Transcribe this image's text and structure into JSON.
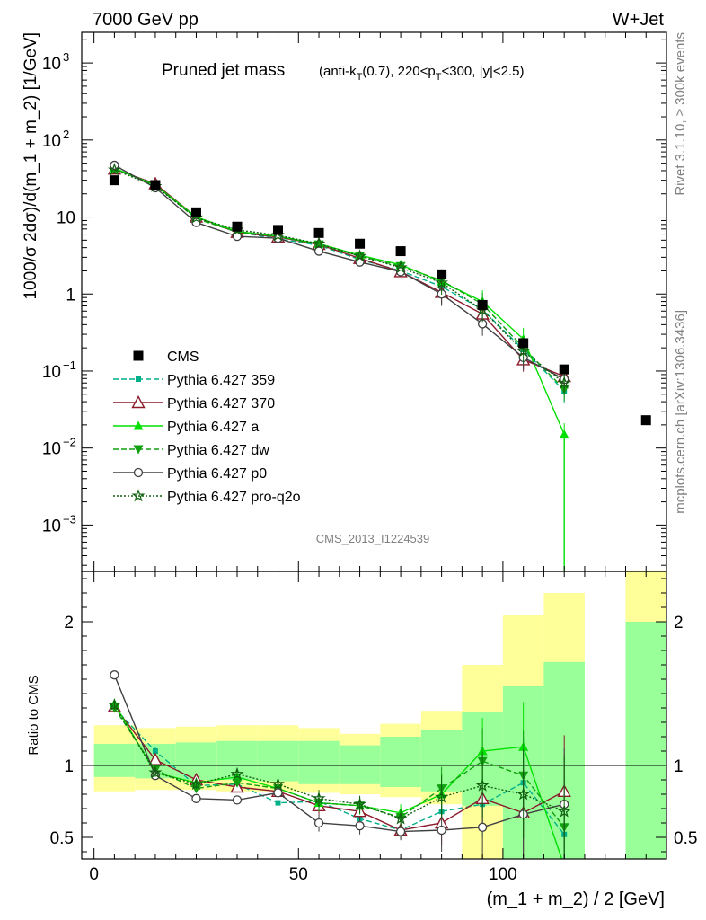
{
  "header": {
    "left": "7000 GeV pp",
    "right": "W+Jet"
  },
  "side_labels": {
    "rivet": "Rivet 3.1.10, ≥ 300k events",
    "mcplots": "mcplots.cern.ch [arXiv:1306.3436]"
  },
  "watermark": "CMS_2013_I1224539",
  "chart_data": [
    {
      "type": "scatter",
      "panel": "main",
      "title_main": "Pruned jet mass",
      "title_sub_parts": [
        "(anti-k",
        "T",
        "(0.7), 220<p",
        "T",
        "<300, |y|<2.5)"
      ],
      "ylabel": "1000/σ 2dσ)/d(m_1 + m_2) [1/GeV]",
      "yscale": "log",
      "ylim": [
        0.00025,
        2500
      ],
      "xlim": [
        -3,
        140
      ],
      "y_ticks": [
        {
          "v": 1000,
          "base": "10",
          "exp": "3"
        },
        {
          "v": 100,
          "base": "10",
          "exp": "2"
        },
        {
          "v": 10,
          "base": "10",
          "exp": ""
        },
        {
          "v": 1,
          "base": "1",
          "exp": ""
        },
        {
          "v": 0.1,
          "base": "10",
          "exp": "−1"
        },
        {
          "v": 0.01,
          "base": "10",
          "exp": "−2"
        },
        {
          "v": 0.001,
          "base": "10",
          "exp": "−3"
        }
      ],
      "x": [
        5,
        15,
        25,
        35,
        45,
        55,
        65,
        75,
        85,
        95,
        105,
        115,
        135
      ],
      "data": {
        "name": "CMS",
        "values": [
          30,
          26,
          11.5,
          7.5,
          6.8,
          6.2,
          4.5,
          3.6,
          1.8,
          0.72,
          0.23,
          0.105,
          0.023
        ]
      },
      "series": [
        {
          "name": "Pythia 6.427 359",
          "color": "#00b088",
          "dash": "6,3",
          "marker": "square",
          "values": [
            42,
            27,
            9.8,
            6.4,
            5.2,
            4.3,
            2.8,
            2.0,
            1.25,
            0.63,
            0.19,
            0.055
          ]
        },
        {
          "name": "Pythia 6.427 370",
          "color": "#8b1a2a",
          "dash": "",
          "marker": "triangle-open",
          "values": [
            42,
            27,
            10,
            6.3,
            5.5,
            4.4,
            2.9,
            1.95,
            1.05,
            0.55,
            0.14,
            0.085
          ]
        },
        {
          "name": "Pythia 6.427 a",
          "color": "#00e000",
          "dash": "",
          "marker": "triangle",
          "values": [
            43,
            26,
            10,
            6.5,
            5.6,
            4.5,
            3.2,
            2.4,
            1.45,
            0.8,
            0.26,
            0.015
          ]
        },
        {
          "name": "Pythia 6.427 dw",
          "color": "#10a010",
          "dash": "6,3",
          "marker": "triangle-down",
          "values": [
            42,
            26,
            9.5,
            6.4,
            5.6,
            4.4,
            3.1,
            2.3,
            1.5,
            0.74,
            0.2,
            0.058
          ]
        },
        {
          "name": "Pythia 6.427 p0",
          "color": "#404040",
          "dash": "",
          "marker": "circle-open",
          "values": [
            47,
            24,
            8.5,
            5.6,
            5.3,
            3.6,
            2.6,
            1.95,
            1.0,
            0.41,
            0.15,
            0.078
          ]
        },
        {
          "name": "Pythia 6.427 pro-q2o",
          "color": "#106010",
          "dash": "2,2",
          "marker": "star",
          "values": [
            41,
            25,
            9.8,
            6.8,
            5.8,
            4.5,
            3.1,
            2.2,
            1.4,
            0.62,
            0.18,
            0.07
          ]
        }
      ],
      "legend_position": "bottom-left"
    },
    {
      "type": "scatter",
      "panel": "ratio",
      "ylabel": "Ratio to CMS",
      "xlabel": "(m_1 + m_2) / 2 [GeV]",
      "ylim": [
        0.35,
        2.35
      ],
      "xlim": [
        -3,
        140
      ],
      "x_ticks": [
        0,
        50,
        100
      ],
      "y_ticks": [
        0.5,
        1,
        2
      ],
      "bands": {
        "edges": [
          0,
          10,
          20,
          30,
          40,
          50,
          60,
          70,
          80,
          90,
          100,
          110,
          120,
          130,
          140
        ],
        "yellow_lo": [
          0.82,
          0.83,
          0.83,
          0.82,
          0.82,
          0.81,
          0.8,
          0.78,
          0.73,
          0.3,
          0.3,
          0.3,
          null,
          0.3
        ],
        "yellow_hi": [
          1.28,
          1.26,
          1.27,
          1.28,
          1.28,
          1.26,
          1.22,
          1.29,
          1.38,
          1.7,
          2.05,
          2.2,
          null,
          2.35
        ],
        "green_lo": [
          0.92,
          0.91,
          0.9,
          0.9,
          0.89,
          0.87,
          0.87,
          0.85,
          0.82,
          0.72,
          0.3,
          0.3,
          null,
          0.3
        ],
        "green_hi": [
          1.15,
          1.15,
          1.16,
          1.17,
          1.17,
          1.17,
          1.14,
          1.2,
          1.25,
          1.37,
          1.55,
          1.72,
          null,
          2.0
        ]
      },
      "series_values": [
        [
          1.4,
          1.1,
          0.86,
          0.87,
          0.74,
          0.75,
          0.63,
          0.55,
          0.68,
          0.73,
          0.88,
          0.52
        ],
        [
          1.41,
          1.04,
          0.9,
          0.85,
          0.82,
          0.72,
          0.68,
          0.55,
          0.6,
          0.77,
          0.67,
          0.82
        ],
        [
          1.43,
          0.95,
          0.88,
          0.92,
          0.84,
          0.74,
          0.72,
          0.67,
          0.8,
          1.1,
          1.13,
          0.3
        ],
        [
          1.4,
          0.97,
          0.84,
          0.88,
          0.84,
          0.74,
          0.72,
          0.64,
          0.84,
          1.03,
          0.93,
          0.57
        ],
        [
          1.63,
          0.93,
          0.77,
          0.76,
          0.81,
          0.6,
          0.58,
          0.54,
          0.55,
          0.57,
          0.66,
          0.73
        ],
        [
          1.42,
          0.95,
          0.87,
          0.94,
          0.87,
          0.77,
          0.73,
          0.63,
          0.78,
          0.86,
          0.8,
          0.68
        ]
      ]
    }
  ]
}
